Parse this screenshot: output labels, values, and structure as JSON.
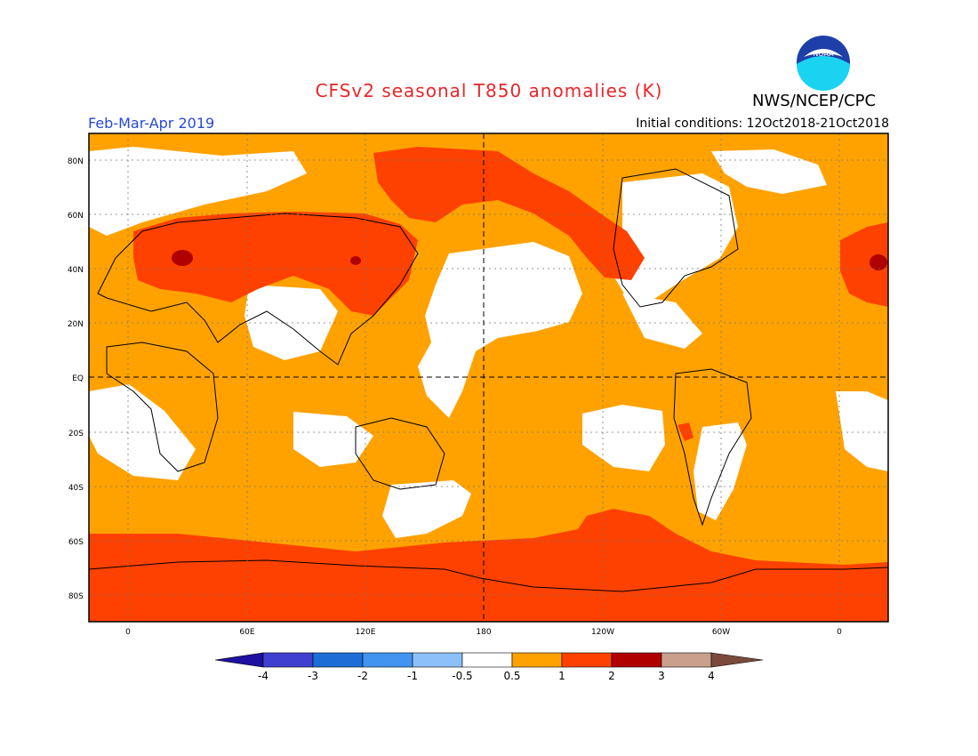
{
  "header": {
    "title": "CFSv2 seasonal T850 anomalies (K)",
    "agency": "NWS/NCEP/CPC",
    "season": "Feb-Mar-Apr 2019",
    "initial_conditions": "Initial conditions: 12Oct2018-21Oct2018",
    "logo_text": "NOAA"
  },
  "map": {
    "lat_labels": [
      "80N",
      "60N",
      "40N",
      "20N",
      "EQ",
      "20S",
      "40S",
      "60S",
      "80S"
    ],
    "lon_labels": [
      "0",
      "60E",
      "120E",
      "180",
      "120W",
      "60W",
      "0"
    ],
    "colors": {
      "below_neg0_5_to_0_5": "#ffffff",
      "0_5_to_1": "#ffa200",
      "1_to_2": "#ff4100",
      "2_to_3": "#b00000",
      "ocean_bg": "#ffa200"
    }
  },
  "colorbar": {
    "labels": [
      "-4",
      "-3",
      "-2",
      "-1",
      "-0.5",
      "0.5",
      "1",
      "2",
      "3",
      "4"
    ],
    "colors": [
      "#1e10a0",
      "#4040d0",
      "#1c6ed6",
      "#4194f0",
      "#8cc0f8",
      "#ffffff",
      "#ffa200",
      "#ff4100",
      "#b00000",
      "#c8a08c",
      "#7a4a3c"
    ]
  }
}
